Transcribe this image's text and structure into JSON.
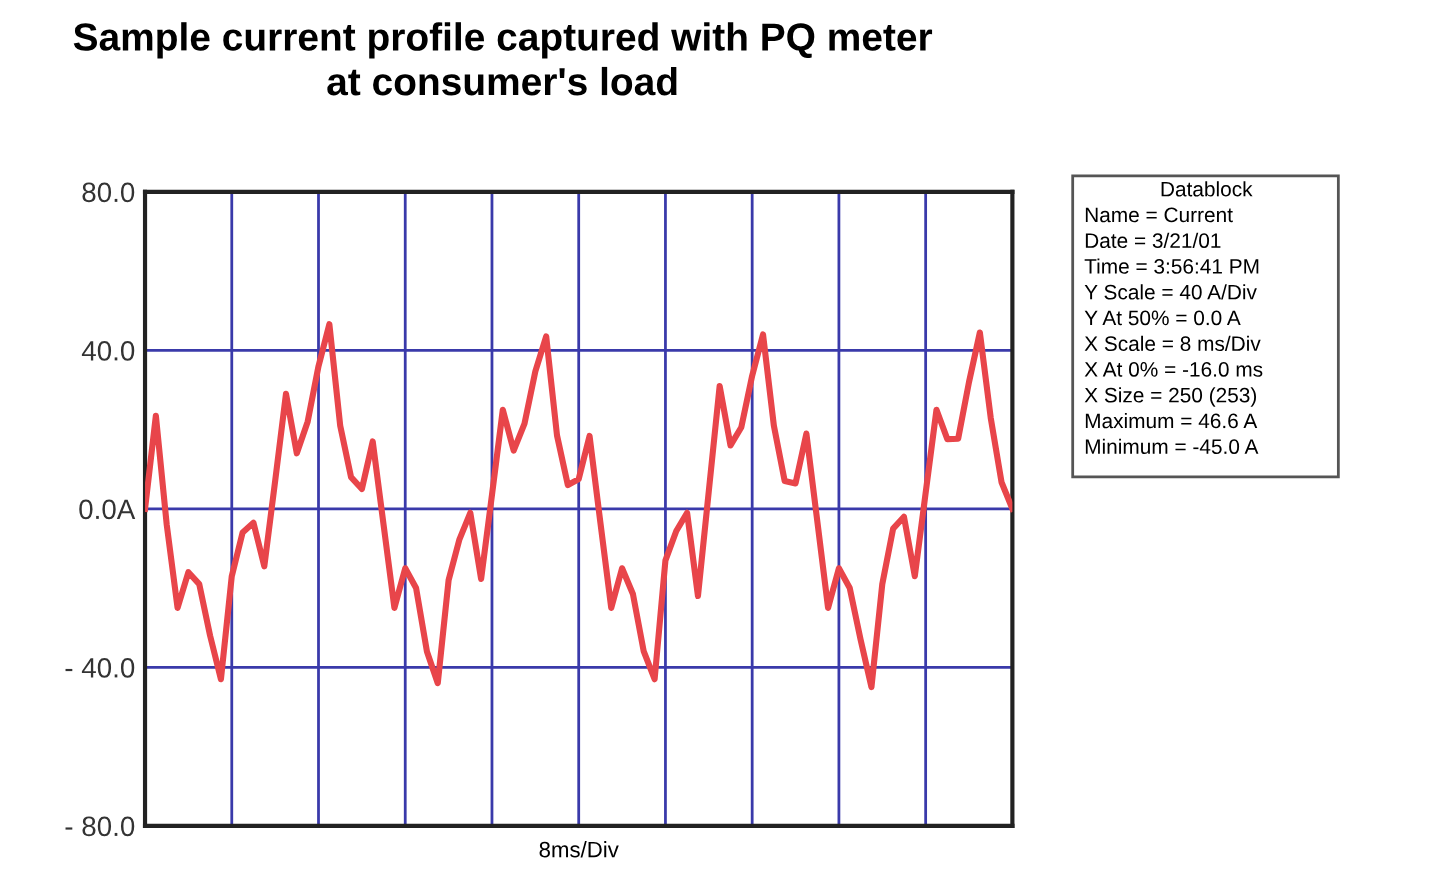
{
  "chart_data": {
    "type": "line",
    "title": "Sample current profile captured with PQ meter\nat consumer's load",
    "xlabel": "8ms/Div",
    "categories": [
      null,
      null,
      null,
      null,
      null,
      null,
      null,
      null,
      null,
      null,
      null,
      null,
      null,
      null,
      null,
      null,
      null,
      null,
      null,
      null,
      null,
      null,
      null,
      null,
      null,
      null,
      null,
      null,
      null,
      null,
      null,
      null,
      null,
      null,
      null,
      null,
      null,
      null,
      null,
      null,
      null,
      null,
      null,
      null,
      null,
      null,
      null,
      null,
      null,
      null,
      null,
      null,
      null,
      null,
      null,
      null,
      null,
      null,
      null,
      null,
      null,
      null,
      null,
      null,
      null,
      null,
      null,
      null,
      null,
      null,
      null,
      null,
      null,
      null,
      null,
      null,
      null,
      null,
      null,
      null,
      null
    ],
    "series": [
      {
        "color": "#e8454a",
        "values": [
          0,
          23.5,
          -4,
          -25,
          -16,
          -19,
          -32,
          -43,
          -17,
          -6,
          -3.5,
          -14.5,
          7,
          29,
          14,
          22,
          36,
          46.6,
          21,
          8,
          5,
          17,
          -4,
          -25,
          -15,
          -20,
          -36,
          -44,
          -18,
          -7.7,
          -1,
          -17.7,
          3.5,
          25,
          14.7,
          21.5,
          34.7,
          43.5,
          18.5,
          6,
          7.5,
          18.4,
          -3.5,
          -25,
          -15,
          -21.5,
          -36,
          -43,
          -13,
          -5.6,
          -1,
          -22,
          4.5,
          31,
          16,
          20.6,
          33.6,
          44,
          21,
          7,
          6.4,
          19,
          -3,
          -25,
          -15,
          -20,
          -33,
          -45,
          -19,
          -5,
          -2,
          -17,
          4,
          25,
          17.6,
          17.7,
          32,
          44.5,
          23,
          6.7,
          0
        ]
      }
    ],
    "ylim": [
      -80,
      80
    ],
    "yticks": [
      {
        "value": -80,
        "label": "- 80.0"
      },
      {
        "value": -40,
        "label": "- 40.0"
      },
      {
        "value": 0,
        "label": "0.0A"
      },
      {
        "value": 40,
        "label": "40.0"
      },
      {
        "value": 80,
        "label": "80.0"
      }
    ],
    "grid": true,
    "annotations": [
      "Datablock",
      "Name = Current",
      "Date = 3/21/01",
      "Time = 3:56:41 PM",
      "Y Scale = 40 A/Div",
      "Y At 50% = 0.0 A",
      "X Scale = 8 ms/Div",
      "X At 0% = -16.0 ms",
      "X Size = 250 (253)",
      "Maximum = 46.6 A",
      "Minimum = -45.0 A"
    ]
  }
}
